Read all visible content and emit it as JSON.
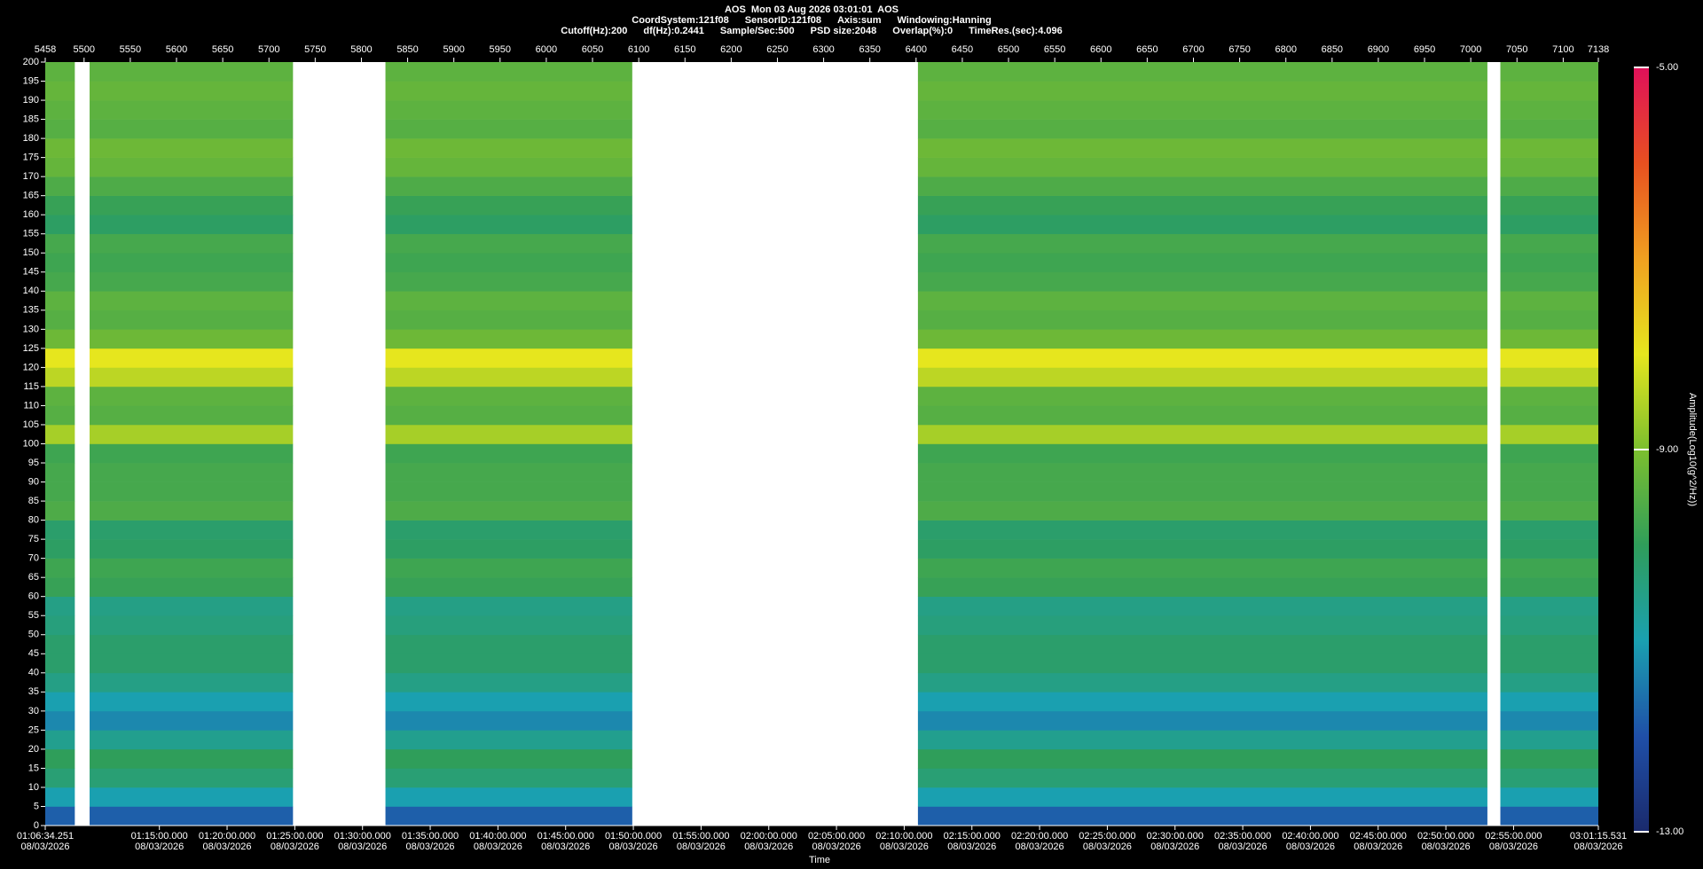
{
  "chart_data": {
    "type": "spectrogram",
    "title": "AOS  Mon 03 Aug 2026 03:01:01  AOS",
    "info": [
      "CoordSystem:121f08",
      "SensorID:121f08",
      "Axis:sum",
      "Windowing:Hanning"
    ],
    "settings": [
      "Cutoff(Hz):200",
      "df(Hz):0.2441",
      "Sample/Sec:500",
      "PSD size:2048",
      "Overlap(%):0",
      "TimeRes.(sec):4.096"
    ],
    "xlim": [
      5458,
      7138
    ],
    "xticks": [
      5458,
      5500,
      5550,
      5600,
      5650,
      5700,
      5750,
      5800,
      5850,
      5900,
      5950,
      6000,
      6050,
      6100,
      6150,
      6200,
      6250,
      6300,
      6350,
      6400,
      6450,
      6500,
      6550,
      6600,
      6650,
      6700,
      6750,
      6800,
      6850,
      6900,
      6950,
      7000,
      7050,
      7100,
      7138
    ],
    "ylim": [
      0,
      200
    ],
    "yticks": [
      0,
      5,
      10,
      15,
      20,
      25,
      30,
      35,
      40,
      45,
      50,
      55,
      60,
      65,
      70,
      75,
      80,
      85,
      90,
      95,
      100,
      105,
      110,
      115,
      120,
      125,
      130,
      135,
      140,
      145,
      150,
      155,
      160,
      165,
      170,
      175,
      180,
      185,
      190,
      195,
      200
    ],
    "xlabel": "Time",
    "time_lim": [
      "01:06:34.251",
      "03:01:15.531"
    ],
    "time_ticks": [
      "01:06:34.251",
      "01:15:00.000",
      "01:20:00.000",
      "01:25:00.000",
      "01:30:00.000",
      "01:35:00.000",
      "01:40:00.000",
      "01:45:00.000",
      "01:50:00.000",
      "01:55:00.000",
      "02:00:00.000",
      "02:05:00.000",
      "02:10:00.000",
      "02:15:00.000",
      "02:20:00.000",
      "02:25:00.000",
      "02:30:00.000",
      "02:35:00.000",
      "02:40:00.000",
      "02:45:00.000",
      "02:50:00.000",
      "02:55:00.000",
      "03:01:15.531"
    ],
    "date": "08/03/2026",
    "segments": [
      [
        5458,
        5490
      ],
      [
        5506,
        5726
      ],
      [
        5826,
        6093
      ],
      [
        6402,
        7018
      ],
      [
        7032,
        7138
      ]
    ],
    "frequency_bins": [
      0,
      5,
      10,
      15,
      20,
      25,
      30,
      35,
      40,
      45,
      50,
      55,
      60,
      65,
      70,
      75,
      80,
      85,
      90,
      95,
      100,
      105,
      110,
      115,
      120,
      125,
      130,
      135,
      140,
      145,
      150,
      155,
      160,
      165,
      170,
      175,
      180,
      185,
      190,
      195,
      200
    ],
    "z": [
      -11.8,
      -11.0,
      -10.3,
      -10.0,
      -10.6,
      -11.3,
      -11.0,
      -10.5,
      -10.2,
      -10.2,
      -10.4,
      -10.5,
      -9.9,
      -9.8,
      -10.1,
      -10.2,
      -9.6,
      -9.7,
      -9.7,
      -9.8,
      -8.6,
      -9.5,
      -9.4,
      -8.4,
      -8.0,
      -9.2,
      -9.5,
      -9.4,
      -9.7,
      -9.8,
      -9.7,
      -10.1,
      -9.9,
      -9.6,
      -9.3,
      -9.2,
      -9.5,
      -9.4,
      -9.3,
      -9.4
    ],
    "zlim": [
      -13,
      -5
    ],
    "zticks": [
      {
        "value": -5,
        "label": "-5.00"
      },
      {
        "value": -9,
        "label": "-9.00"
      },
      {
        "value": -13,
        "label": "-13.00"
      }
    ],
    "zlabel": "Amplitude(Log10(g^2/Hz))",
    "colormap": [
      "#1a2a6c",
      "#1f4fa8",
      "#1aa0b0",
      "#2f9e5a",
      "#7cbf2e",
      "#e6e61e",
      "#f0a020",
      "#e85020",
      "#e0105a"
    ],
    "gap_color": "#ffffff"
  }
}
